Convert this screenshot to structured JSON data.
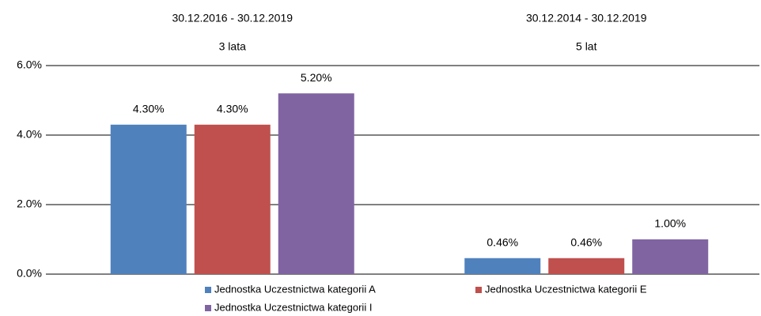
{
  "chart_data": {
    "type": "bar",
    "categories": [
      "30.12.2016 - 30.12.2019",
      "30.12.2014 - 30.12.2019"
    ],
    "category_sublabels": [
      "3 lata",
      "5 lat"
    ],
    "series": [
      {
        "name": "Jednostka Uczestnictwa kategorii A",
        "color": "#4f81bd",
        "values": [
          4.3,
          0.46
        ],
        "value_labels": [
          "4.30%",
          "0.46%"
        ]
      },
      {
        "name": "Jednostka Uczestnictwa kategorii E",
        "color": "#c0504d",
        "values": [
          4.3,
          0.46
        ],
        "value_labels": [
          "4.30%",
          "0.46%"
        ]
      },
      {
        "name": "Jednostka Uczestnictwa kategorii I",
        "color": "#8064a2",
        "values": [
          5.2,
          1.0
        ],
        "value_labels": [
          "5.20%",
          "1.00%"
        ]
      }
    ],
    "ylim": [
      0,
      6
    ],
    "yticks": [
      {
        "value": 0,
        "label": "0.0%"
      },
      {
        "value": 2,
        "label": "2.0%"
      },
      {
        "value": 4,
        "label": "4.0%"
      },
      {
        "value": 6,
        "label": "6.0%"
      }
    ],
    "grid": true
  }
}
